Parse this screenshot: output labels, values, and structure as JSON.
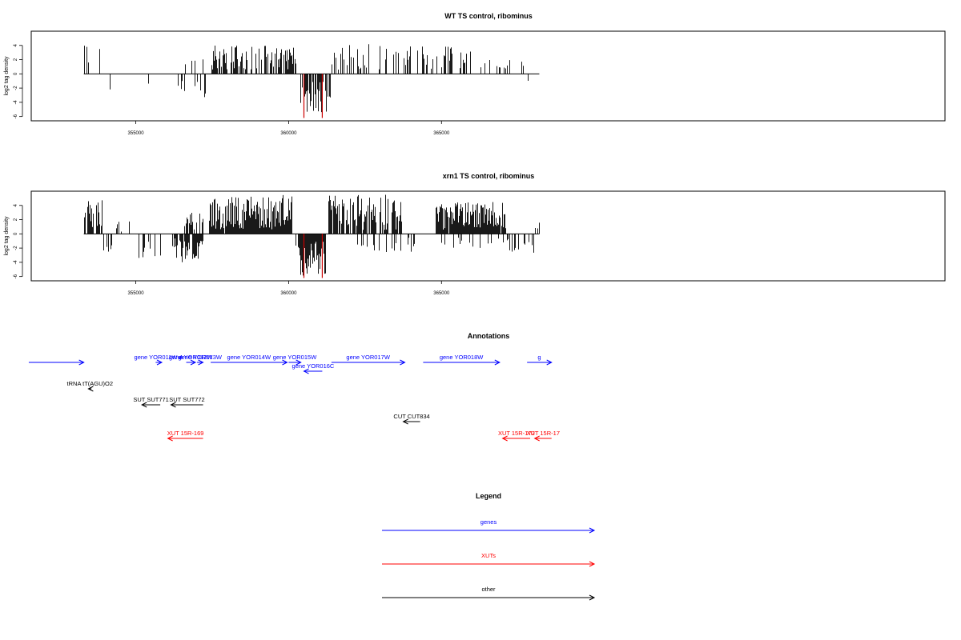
{
  "chart_data": [
    {
      "type": "bar",
      "title": "WT TS control, ribominus",
      "ylabel": "log2 tag density",
      "xlim": [
        351580,
        381470
      ],
      "ylim": [
        -6.6,
        6.0
      ],
      "xticks": [
        355000,
        360000,
        365000
      ],
      "xtick_labels": [
        "355000",
        "360000",
        "365000"
      ],
      "yticks": [
        4,
        2,
        0,
        -2,
        -4,
        -6
      ],
      "ytick_labels": [
        "4",
        "2",
        "0",
        "-2",
        "-4",
        "-6"
      ],
      "baseline_range": [
        353300,
        368200
      ],
      "highlight_color": "#cc0000",
      "seed": 7,
      "regions": [
        {
          "from": 353300,
          "to": 353850,
          "strand": 1,
          "density": 0.3,
          "amp": [
            1.4,
            4.2
          ]
        },
        {
          "from": 354000,
          "to": 354200,
          "strand": -1,
          "density": 0.12,
          "amp": [
            2.0,
            3.6
          ]
        },
        {
          "from": 355400,
          "to": 355700,
          "strand": -1,
          "density": 0.1,
          "amp": [
            1.0,
            1.6
          ]
        },
        {
          "from": 356300,
          "to": 357300,
          "strand": -1,
          "density": 0.22,
          "amp": [
            1.0,
            3.6
          ]
        },
        {
          "from": 356500,
          "to": 357300,
          "strand": 1,
          "density": 0.12,
          "amp": [
            0.8,
            2.2
          ]
        },
        {
          "from": 357400,
          "to": 360300,
          "strand": 1,
          "density": 0.55,
          "amp": [
            0.6,
            4.0
          ]
        },
        {
          "from": 360300,
          "to": 361400,
          "strand": -1,
          "density": 0.7,
          "amp": [
            1.0,
            5.5
          ]
        },
        {
          "from": 361400,
          "to": 366000,
          "strand": 1,
          "density": 0.28,
          "amp": [
            0.5,
            4.2
          ]
        },
        {
          "from": 366000,
          "to": 368200,
          "strand": 1,
          "density": 0.1,
          "amp": [
            0.6,
            2.0
          ]
        },
        {
          "from": 367600,
          "to": 368200,
          "strand": -1,
          "density": 0.04,
          "amp": [
            0.6,
            1.2
          ]
        }
      ],
      "highlights": [
        {
          "x": 360500,
          "y": -6.2
        },
        {
          "x": 361100,
          "y": -6.2
        }
      ]
    },
    {
      "type": "bar",
      "title": "xrn1 TS control, ribominus",
      "ylabel": "log2 tag density",
      "xlim": [
        351580,
        381470
      ],
      "ylim": [
        -6.6,
        6.0
      ],
      "xticks": [
        355000,
        360000,
        365000
      ],
      "xtick_labels": [
        "355000",
        "360000",
        "365000"
      ],
      "yticks": [
        4,
        2,
        0,
        -2,
        -4,
        -6
      ],
      "ytick_labels": [
        "4",
        "2",
        "0",
        "-2",
        "-4",
        "-6"
      ],
      "baseline_range": [
        353300,
        368200
      ],
      "highlight_color": "#cc0000",
      "seed": 23,
      "regions": [
        {
          "from": 353300,
          "to": 353900,
          "strand": 1,
          "density": 0.7,
          "amp": [
            0.8,
            5.0
          ]
        },
        {
          "from": 353950,
          "to": 354200,
          "strand": -1,
          "density": 0.3,
          "amp": [
            1.5,
            3.0
          ]
        },
        {
          "from": 354300,
          "to": 355100,
          "strand": 1,
          "density": 0.1,
          "amp": [
            0.3,
            1.8
          ]
        },
        {
          "from": 355100,
          "to": 356300,
          "strand": -1,
          "density": 0.35,
          "amp": [
            0.4,
            3.6
          ]
        },
        {
          "from": 356300,
          "to": 357200,
          "strand": -1,
          "density": 0.85,
          "amp": [
            0.8,
            4.0
          ]
        },
        {
          "from": 356500,
          "to": 357200,
          "strand": 1,
          "density": 0.4,
          "amp": [
            0.6,
            3.0
          ]
        },
        {
          "from": 357400,
          "to": 360100,
          "strand": 1,
          "density": 0.95,
          "amp": [
            0.6,
            5.5
          ]
        },
        {
          "from": 360100,
          "to": 360350,
          "strand": -1,
          "density": 0.3,
          "amp": [
            0.5,
            2.0
          ]
        },
        {
          "from": 360350,
          "to": 361200,
          "strand": -1,
          "density": 1.0,
          "amp": [
            1.0,
            6.0
          ]
        },
        {
          "from": 361300,
          "to": 363700,
          "strand": 1,
          "density": 0.75,
          "amp": [
            0.5,
            5.5
          ]
        },
        {
          "from": 362000,
          "to": 364200,
          "strand": -1,
          "density": 0.12,
          "amp": [
            0.5,
            2.6
          ]
        },
        {
          "from": 364800,
          "to": 367100,
          "strand": 1,
          "density": 0.95,
          "amp": [
            0.6,
            4.5
          ]
        },
        {
          "from": 365000,
          "to": 367100,
          "strand": -1,
          "density": 0.2,
          "amp": [
            0.4,
            2.0
          ]
        },
        {
          "from": 367100,
          "to": 368200,
          "strand": -1,
          "density": 0.4,
          "amp": [
            0.5,
            3.3
          ]
        },
        {
          "from": 367900,
          "to": 368200,
          "strand": 1,
          "density": 0.3,
          "amp": [
            0.6,
            1.8
          ]
        }
      ],
      "highlights": [
        {
          "x": 360500,
          "y": -6.2
        },
        {
          "x": 361100,
          "y": -6.2
        }
      ]
    }
  ],
  "annotations": {
    "title": "Annotations",
    "features": [
      {
        "label": "",
        "class": "gene",
        "row": 0,
        "start": 351500,
        "end": 353300,
        "strand": "+"
      },
      {
        "label": "gene YOR011W-A",
        "class": "gene",
        "row": 0,
        "start": 355650,
        "end": 355850,
        "strand": "+"
      },
      {
        "label": "gene YOR012W",
        "class": "gene",
        "row": 0,
        "start": 356650,
        "end": 356950,
        "strand": "+"
      },
      {
        "label": "gene YOR013W",
        "class": "gene",
        "row": 0,
        "start": 357000,
        "end": 357200,
        "strand": "+"
      },
      {
        "label": "gene YOR014W",
        "class": "gene",
        "row": 0,
        "start": 357450,
        "end": 359950,
        "strand": "+"
      },
      {
        "label": "gene YOR015W",
        "class": "gene",
        "row": 0,
        "start": 360000,
        "end": 360400,
        "strand": "+"
      },
      {
        "label": "gene YOR016C",
        "class": "gene",
        "row": 1,
        "start": 360500,
        "end": 361100,
        "strand": "-"
      },
      {
        "label": "gene YOR017W",
        "class": "gene",
        "row": 0,
        "start": 361400,
        "end": 363800,
        "strand": "+"
      },
      {
        "label": "gene YOR018W",
        "class": "gene",
        "row": 0,
        "start": 364400,
        "end": 366900,
        "strand": "+"
      },
      {
        "label": "g",
        "class": "gene",
        "row": 0,
        "start": 367800,
        "end": 368600,
        "strand": "+"
      },
      {
        "label": "tRNA tT(AGU)O2",
        "class": "other",
        "row": 2,
        "start": 353450,
        "end": 353550,
        "strand": "-"
      },
      {
        "label": "SUT SUT771",
        "class": "other",
        "row": 3,
        "start": 355200,
        "end": 355800,
        "strand": "-"
      },
      {
        "label": "SUT SUT772",
        "class": "other",
        "row": 3,
        "start": 356150,
        "end": 357200,
        "strand": "-"
      },
      {
        "label": "CUT CUT834",
        "class": "other",
        "row": 4,
        "start": 363750,
        "end": 364300,
        "strand": "-"
      },
      {
        "label": "XUT 15R-169",
        "class": "xut",
        "row": 5,
        "start": 356050,
        "end": 357200,
        "strand": "-"
      },
      {
        "label": "XUT 15R-172",
        "class": "xut",
        "row": 5,
        "start": 367000,
        "end": 367900,
        "strand": "-"
      },
      {
        "label": "XUT 15R-17",
        "class": "xut",
        "row": 5,
        "start": 368050,
        "end": 368600,
        "strand": "-"
      }
    ]
  },
  "legend": {
    "title": "Legend",
    "items": [
      {
        "label": "genes",
        "class": "gene"
      },
      {
        "label": "XUTs",
        "class": "xut"
      },
      {
        "label": "other",
        "class": "other"
      }
    ]
  },
  "colors": {
    "gene": "#0000ff",
    "xut": "#ff0000",
    "other": "#000000"
  }
}
